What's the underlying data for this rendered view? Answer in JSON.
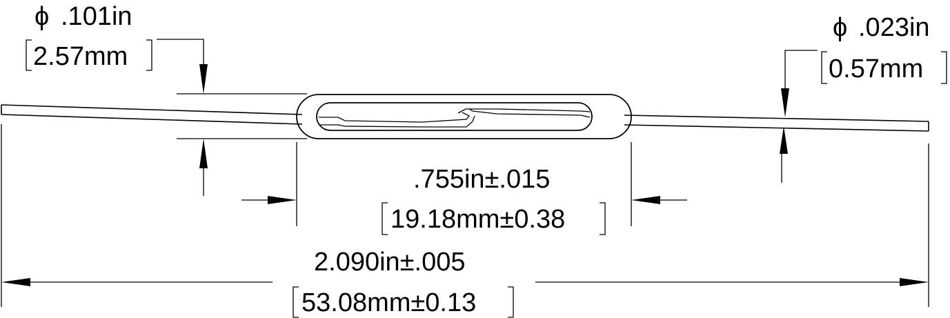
{
  "dimensions": {
    "body_diameter": {
      "symbol": "ϕ",
      "imperial": ".101in",
      "metric": "2.57mm"
    },
    "lead_diameter": {
      "symbol": "ϕ",
      "imperial": ".023in",
      "metric": "0.57mm"
    },
    "body_length": {
      "imperial": ".755in±.015",
      "metric": "19.18mm±0.38"
    },
    "overall_length": {
      "imperial": "2.090in±.005",
      "metric": "53.08mm±0.13"
    }
  }
}
